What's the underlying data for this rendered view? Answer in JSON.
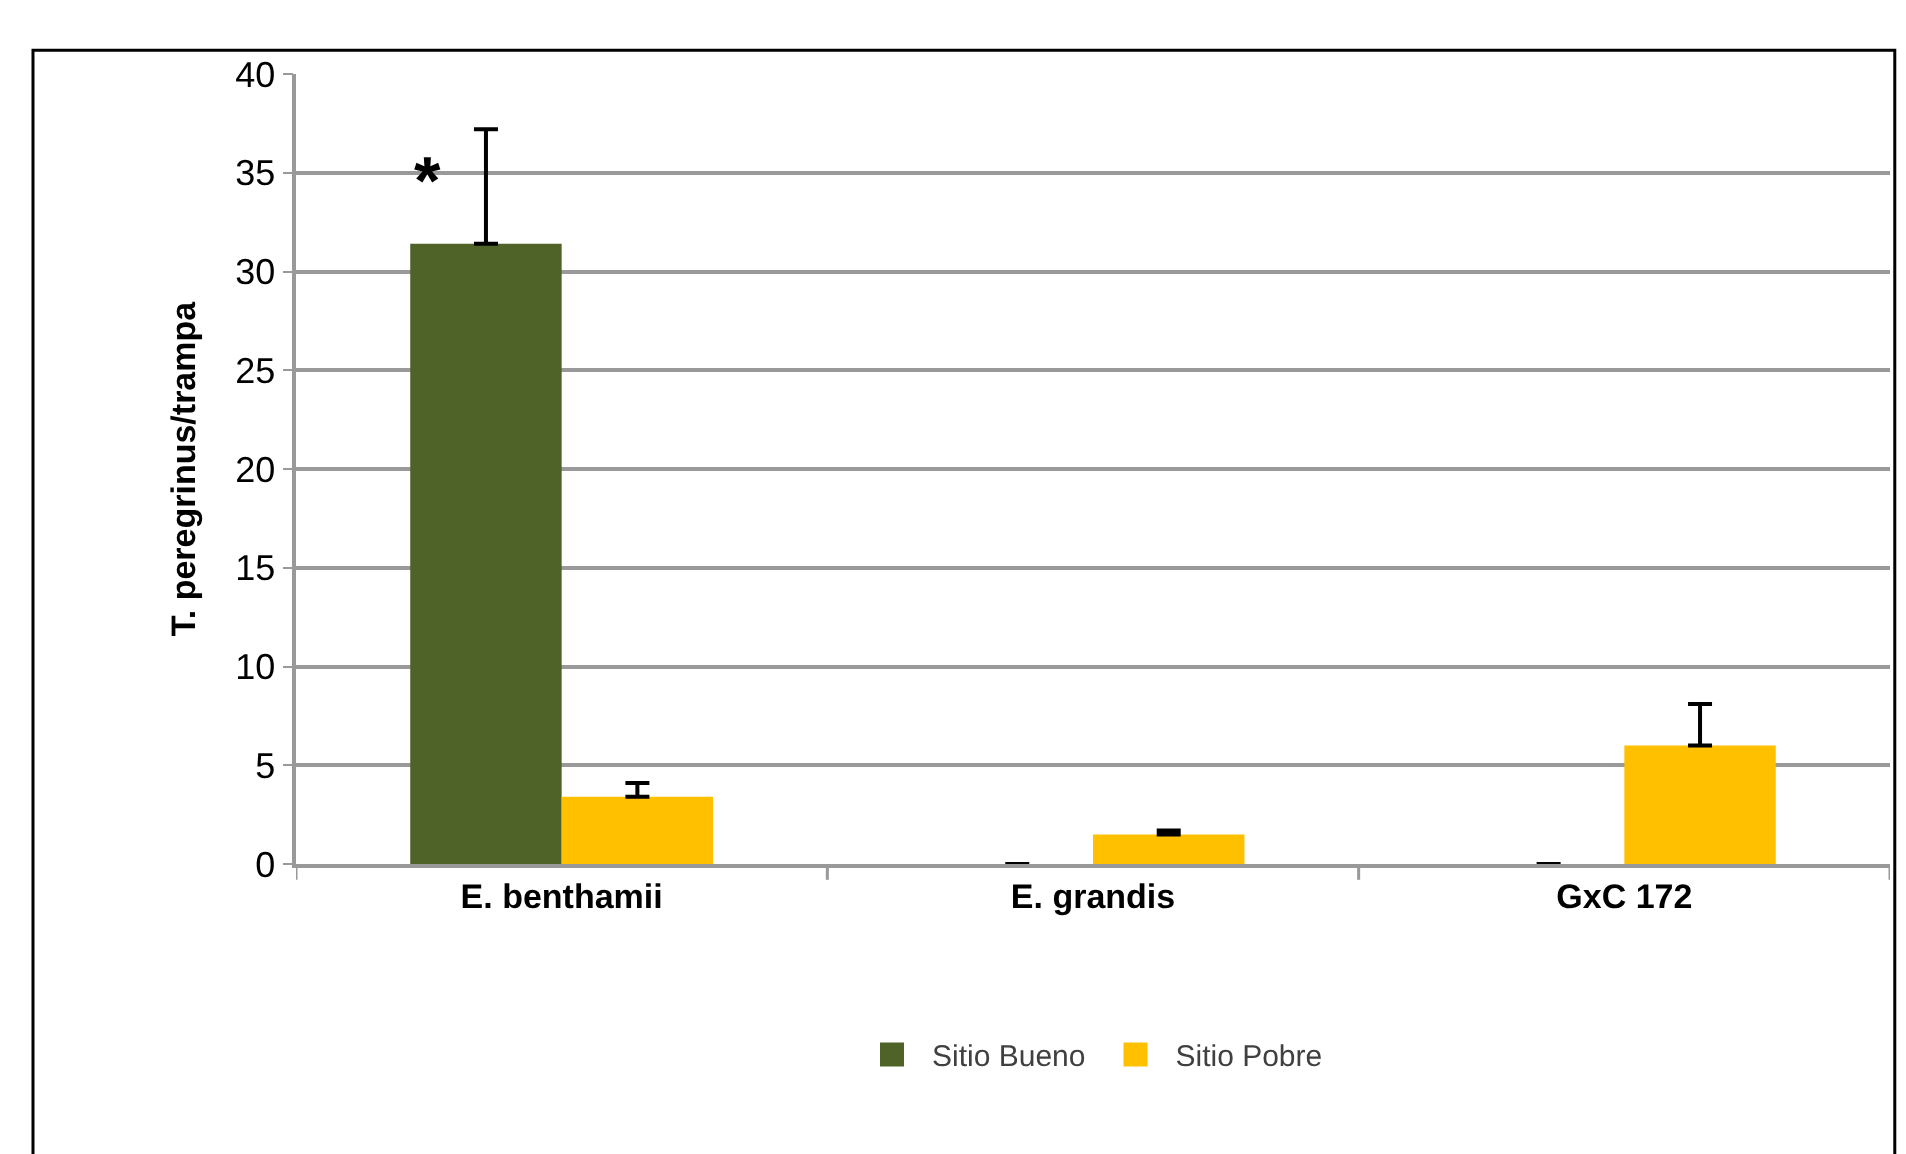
{
  "chart_data": {
    "type": "bar",
    "ylabel": "T. peregrinus/trampa",
    "categories": [
      "E. benthamii",
      "E. grandis",
      "GxC 172"
    ],
    "series": [
      {
        "name": "Sitio Bueno",
        "color": "#4f6228",
        "values": [
          31.4,
          0,
          0
        ],
        "errors": [
          [
            31.4,
            37.2
          ],
          [
            0,
            0
          ],
          [
            0,
            0
          ]
        ]
      },
      {
        "name": "Sitio Pobre",
        "color": "#ffc000",
        "values": [
          3.4,
          1.5,
          6.0
        ],
        "errors": [
          [
            3.4,
            4.1
          ],
          [
            1.5,
            1.7
          ],
          [
            6.0,
            8.1
          ]
        ]
      }
    ],
    "ylim": [
      0,
      40
    ],
    "yticks": [
      0,
      5,
      10,
      15,
      20,
      25,
      30,
      35,
      40
    ],
    "grid": "y",
    "legend": "bottom",
    "annotations": [
      "*"
    ]
  }
}
